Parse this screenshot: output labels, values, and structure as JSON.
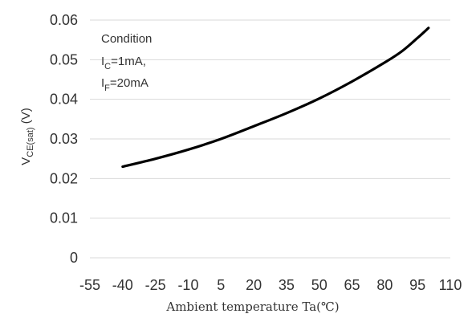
{
  "chart_data": {
    "type": "line",
    "title": "",
    "xlabel": "Ambient temperature Ta(℃)",
    "ylabel": "V_CE(sat) (V)",
    "ylabel_parts": {
      "main": "V",
      "sub": "CE(sat)",
      "unit": " (V)"
    },
    "x_ticks": [
      -55,
      -40,
      -25,
      -10,
      5,
      20,
      35,
      50,
      65,
      80,
      95,
      110
    ],
    "y_ticks": [
      0,
      0.01,
      0.02,
      0.03,
      0.04,
      0.05,
      0.06
    ],
    "y_tick_labels": [
      "0",
      "0.01",
      "0.02",
      "0.03",
      "0.04",
      "0.05",
      "0.06"
    ],
    "xlim": [
      -55,
      110
    ],
    "ylim": [
      0,
      0.06
    ],
    "grid": "horizontal",
    "legend": "none",
    "series": [
      {
        "x": [
          -40,
          -25,
          -10,
          5,
          20,
          35,
          50,
          65,
          80,
          88,
          95,
          100
        ],
        "y": [
          0.023,
          0.025,
          0.0273,
          0.03,
          0.0332,
          0.0365,
          0.0402,
          0.0445,
          0.0493,
          0.0522,
          0.0555,
          0.058
        ],
        "color": "#000000"
      }
    ],
    "annotation": {
      "title": "Condition",
      "lines": [
        {
          "main": "I",
          "sub": "C",
          "rest": "=1mA,"
        },
        {
          "main": "I",
          "sub": "F",
          "rest": "=20mA"
        }
      ]
    }
  }
}
